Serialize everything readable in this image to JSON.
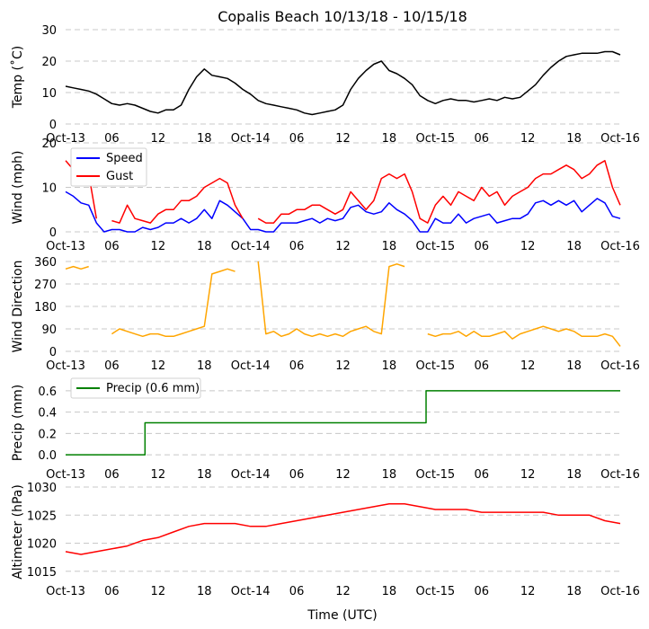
{
  "title": "Copalis Beach 10/13/18 - 10/15/18",
  "xlabel": "Time (UTC)",
  "x_ticks": [
    "Oct-13",
    "06",
    "12",
    "18",
    "Oct-14",
    "06",
    "12",
    "18",
    "Oct-15",
    "06",
    "12",
    "18",
    "Oct-16"
  ],
  "colors": {
    "black": "#000000",
    "blue": "#0000ff",
    "red": "#ff0000",
    "orange": "#ffa500",
    "green": "#008000",
    "grid": "#c8c8c8"
  },
  "chart_data": [
    {
      "type": "line",
      "id": "temp",
      "ylabel": "Temp ($^\\circ$C)",
      "ylabel_display": "Temp (˚C)",
      "ylim": [
        0,
        30
      ],
      "yticks": [
        0,
        10,
        20,
        30
      ],
      "xlim_hours": [
        0,
        72
      ],
      "series": [
        {
          "name": "Temp",
          "color": "#000000",
          "x": [
            0,
            1,
            2,
            3,
            4,
            5,
            6,
            7,
            8,
            9,
            10,
            11,
            12,
            13,
            14,
            15,
            16,
            17,
            18,
            19,
            20,
            21,
            22,
            23,
            24,
            25,
            26,
            27,
            28,
            29,
            30,
            31,
            32,
            33,
            34,
            35,
            36,
            37,
            38,
            39,
            40,
            41,
            42,
            43,
            44,
            45,
            46,
            47,
            48,
            49,
            50,
            51,
            52,
            53,
            54,
            55,
            56,
            57,
            58,
            59,
            60,
            61,
            62,
            63,
            64,
            65,
            66,
            67,
            68,
            69,
            70,
            71,
            72
          ],
          "values": [
            12,
            11.5,
            11,
            10.5,
            9.5,
            8,
            6.5,
            6,
            6.5,
            6,
            5,
            4,
            3.5,
            4.5,
            4.5,
            6,
            11,
            15,
            17.5,
            15.5,
            15,
            14.5,
            13,
            11,
            9.5,
            7.5,
            6.5,
            6,
            5.5,
            5,
            4.5,
            3.5,
            3,
            3.5,
            4,
            4.5,
            6,
            11,
            14.5,
            17,
            19,
            20,
            17,
            16,
            14.5,
            12.5,
            9,
            7.5,
            6.5,
            7.5,
            8,
            7.5,
            7.5,
            7,
            7.5,
            8,
            7.5,
            8.5,
            8,
            8.5,
            10.5,
            12.5,
            15.5,
            18,
            20,
            21.5,
            22,
            22.5,
            22.5,
            22.5,
            23,
            23,
            22
          ]
        }
      ]
    },
    {
      "type": "line",
      "id": "wind",
      "ylabel": "Wind (mph)",
      "ylim": [
        0,
        20
      ],
      "yticks": [
        0,
        10,
        20
      ],
      "xlim_hours": [
        0,
        72
      ],
      "legend": [
        "Speed",
        "Gust"
      ],
      "series": [
        {
          "name": "Speed",
          "color": "#0000ff",
          "x": [
            0,
            1,
            2,
            3,
            4,
            5,
            6,
            7,
            8,
            9,
            10,
            11,
            12,
            13,
            14,
            15,
            16,
            17,
            18,
            19,
            20,
            21,
            22,
            23,
            24,
            25,
            26,
            27,
            28,
            29,
            30,
            31,
            32,
            33,
            34,
            35,
            36,
            37,
            38,
            39,
            40,
            41,
            42,
            43,
            44,
            45,
            46,
            47,
            48,
            49,
            50,
            51,
            52,
            53,
            54,
            55,
            56,
            57,
            58,
            59,
            60,
            61,
            62,
            63,
            64,
            65,
            66,
            67,
            68,
            69,
            70,
            71,
            72
          ],
          "values": [
            9,
            8,
            6.5,
            6,
            2,
            0,
            0.5,
            0.5,
            0,
            0,
            1,
            0.5,
            1,
            2,
            2,
            3,
            2,
            3,
            5,
            3,
            7,
            6,
            4.5,
            3,
            0.5,
            0.5,
            0,
            0,
            2,
            2,
            2,
            2.5,
            3,
            2,
            3,
            2.5,
            3,
            5.5,
            6,
            4.5,
            4,
            4.5,
            6.5,
            5,
            4,
            2.5,
            0,
            0,
            3,
            2,
            2,
            4,
            2,
            3,
            3.5,
            4,
            2,
            2.5,
            3,
            3,
            4,
            6.5,
            7,
            6,
            7,
            6,
            7,
            4.5,
            6,
            7.5,
            6.5,
            3.5,
            3
          ]
        },
        {
          "name": "Gust",
          "color": "#ff0000",
          "x": [
            0,
            1,
            2,
            3,
            4,
            5,
            6,
            7,
            8,
            9,
            10,
            11,
            12,
            13,
            14,
            15,
            16,
            17,
            18,
            19,
            20,
            21,
            22,
            23,
            24,
            25,
            26,
            27,
            28,
            29,
            30,
            31,
            32,
            33,
            34,
            35,
            36,
            37,
            38,
            39,
            40,
            41,
            42,
            43,
            44,
            45,
            46,
            47,
            48,
            49,
            50,
            51,
            52,
            53,
            54,
            55,
            56,
            57,
            58,
            59,
            60,
            61,
            62,
            63,
            64,
            65,
            66,
            67,
            68,
            69,
            70,
            71,
            72
          ],
          "values": [
            16,
            14,
            15,
            13,
            3,
            null,
            2.5,
            2,
            6,
            3,
            2.5,
            2,
            4,
            5,
            5,
            7,
            7,
            8,
            10,
            11,
            12,
            11,
            6,
            3,
            null,
            3,
            2,
            2,
            4,
            4,
            5,
            5,
            6,
            6,
            5,
            4,
            5,
            9,
            7,
            5,
            7,
            12,
            13,
            12,
            13,
            9,
            3,
            2,
            6,
            8,
            6,
            9,
            8,
            7,
            10,
            8,
            9,
            6,
            8,
            9,
            10,
            12,
            13,
            13,
            14,
            15,
            14,
            12,
            13,
            15,
            16,
            10,
            6
          ]
        }
      ]
    },
    {
      "type": "line",
      "id": "wind-direction",
      "ylabel": "Wind Direction",
      "ylim": [
        0,
        360
      ],
      "yticks": [
        0,
        90,
        180,
        270,
        360
      ],
      "xlim_hours": [
        0,
        72
      ],
      "series": [
        {
          "name": "Direction",
          "color": "#ffa500",
          "x": [
            0,
            1,
            2,
            3,
            4,
            5,
            6,
            7,
            8,
            9,
            10,
            11,
            12,
            13,
            14,
            15,
            16,
            17,
            18,
            19,
            20,
            21,
            22,
            23,
            24,
            25,
            26,
            27,
            28,
            29,
            30,
            31,
            32,
            33,
            34,
            35,
            36,
            37,
            38,
            39,
            40,
            41,
            42,
            43,
            44,
            45,
            46,
            47,
            48,
            49,
            50,
            51,
            52,
            53,
            54,
            55,
            56,
            57,
            58,
            59,
            60,
            61,
            62,
            63,
            64,
            65,
            66,
            67,
            68,
            69,
            70,
            71,
            72
          ],
          "values": [
            330,
            340,
            330,
            340,
            null,
            null,
            70,
            90,
            80,
            70,
            60,
            70,
            70,
            60,
            60,
            70,
            80,
            90,
            100,
            310,
            320,
            330,
            320,
            null,
            null,
            360,
            70,
            80,
            60,
            70,
            90,
            70,
            60,
            70,
            60,
            70,
            60,
            80,
            90,
            100,
            80,
            70,
            340,
            350,
            340,
            null,
            null,
            70,
            60,
            70,
            70,
            80,
            60,
            80,
            60,
            60,
            70,
            80,
            50,
            70,
            80,
            90,
            100,
            90,
            80,
            90,
            80,
            60,
            60,
            60,
            70,
            60,
            20
          ]
        }
      ]
    },
    {
      "type": "line",
      "id": "precip",
      "ylabel": "Precip (mm)",
      "ylim": [
        -0.05,
        0.65
      ],
      "yticks": [
        0.0,
        0.2,
        0.4,
        0.6
      ],
      "ytick_labels": [
        "0.0",
        "0.2",
        "0.4",
        "0.6"
      ],
      "xlim_hours": [
        0,
        72
      ],
      "legend": [
        "Precip (0.6 mm)"
      ],
      "series": [
        {
          "name": "Precip (0.6 mm)",
          "color": "#008000",
          "x": [
            0,
            10.3,
            10.3,
            46.8,
            46.8,
            72
          ],
          "values": [
            0.0,
            0.0,
            0.3,
            0.3,
            0.6,
            0.6
          ]
        }
      ]
    },
    {
      "type": "line",
      "id": "altimeter",
      "ylabel": "Altimeter (hPa)",
      "ylim": [
        1014,
        1030
      ],
      "yticks": [
        1015,
        1020,
        1025,
        1030
      ],
      "xlim_hours": [
        0,
        72
      ],
      "series": [
        {
          "name": "Altimeter",
          "color": "#ff0000",
          "x": [
            0,
            2,
            4,
            6,
            8,
            10,
            12,
            14,
            16,
            18,
            20,
            22,
            24,
            26,
            28,
            30,
            32,
            34,
            36,
            38,
            40,
            42,
            44,
            46,
            48,
            50,
            52,
            54,
            56,
            58,
            60,
            62,
            64,
            66,
            68,
            70,
            72
          ],
          "values": [
            1018.5,
            1018,
            1018.5,
            1019,
            1019.5,
            1020.5,
            1021,
            1022,
            1023,
            1023.5,
            1023.5,
            1023.5,
            1023,
            1023,
            1023.5,
            1024,
            1024.5,
            1025,
            1025.5,
            1026,
            1026.5,
            1027,
            1027,
            1026.5,
            1026,
            1026,
            1026,
            1025.5,
            1025.5,
            1025.5,
            1025.5,
            1025.5,
            1025,
            1025,
            1025,
            1024,
            1023.5
          ]
        }
      ]
    }
  ]
}
